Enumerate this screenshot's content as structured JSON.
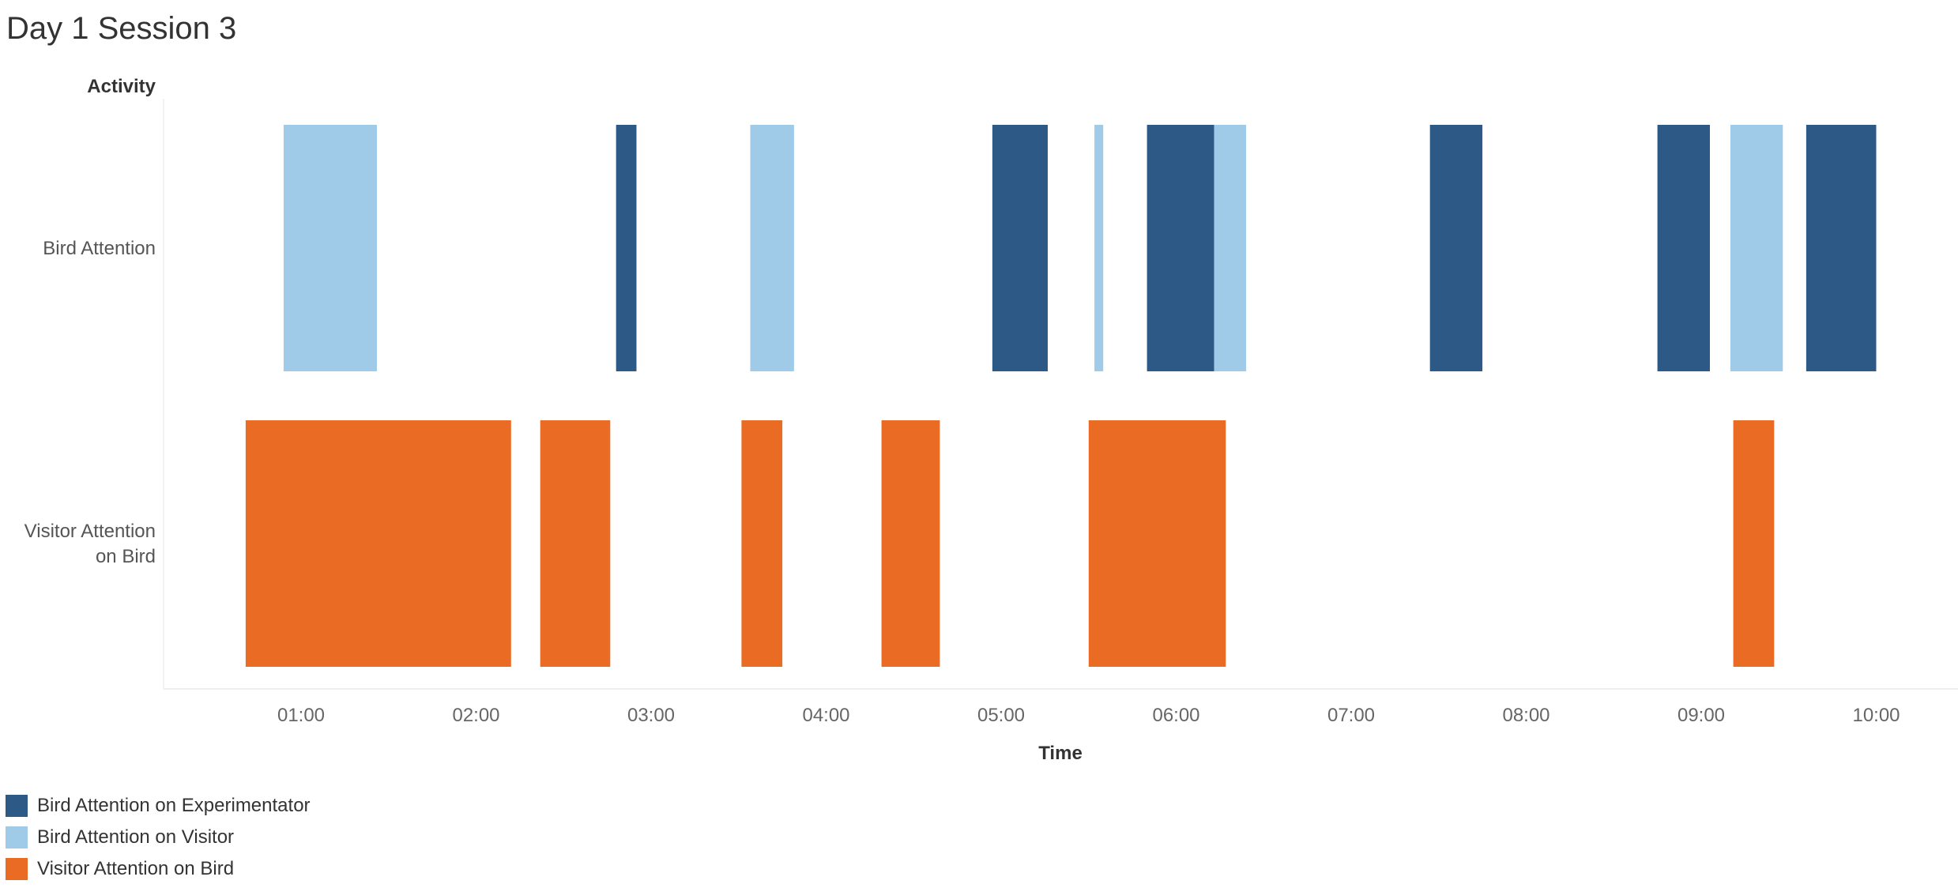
{
  "title": "Day 1 Session 3",
  "chart_data": {
    "type": "timeline",
    "title": "Day 1 Session 3",
    "ylabel": "Activity",
    "xlabel": "Time",
    "x_unit": "mm:ss",
    "xlim": [
      "00:13",
      "10:30"
    ],
    "x_ticks": [
      "01:00",
      "02:00",
      "03:00",
      "04:00",
      "05:00",
      "06:00",
      "07:00",
      "08:00",
      "09:00",
      "10:00"
    ],
    "grid": false,
    "legend_position": "bottom-left",
    "rows": [
      {
        "name": "Bird Attention",
        "label_lines": [
          "Bird Attention"
        ]
      },
      {
        "name": "Visitor Attention on Bird",
        "label_lines": [
          "Visitor Attention",
          "on Bird"
        ]
      }
    ],
    "series": [
      {
        "name": "Bird Attention on Experimentator",
        "row": "Bird Attention",
        "color": "#2c5985",
        "segments": [
          [
            "02:48",
            "02:55"
          ],
          [
            "04:57",
            "05:16"
          ],
          [
            "05:50",
            "06:13"
          ],
          [
            "07:27",
            "07:45"
          ],
          [
            "08:45",
            "09:03"
          ],
          [
            "09:36",
            "10:00"
          ]
        ]
      },
      {
        "name": "Bird Attention on Visitor",
        "row": "Bird Attention",
        "color": "#a0cbe8",
        "segments": [
          [
            "00:54",
            "01:26"
          ],
          [
            "03:34",
            "03:49"
          ],
          [
            "05:32",
            "05:35"
          ],
          [
            "06:13",
            "06:24"
          ],
          [
            "09:10",
            "09:28"
          ]
        ]
      },
      {
        "name": "Visitor Attention on Bird",
        "row": "Visitor Attention on Bird",
        "color": "#e96b24",
        "segments": [
          [
            "00:41",
            "02:12"
          ],
          [
            "02:22",
            "02:46"
          ],
          [
            "03:31",
            "03:45"
          ],
          [
            "04:19",
            "04:39"
          ],
          [
            "05:30",
            "06:17"
          ],
          [
            "09:11",
            "09:25"
          ]
        ]
      }
    ]
  }
}
